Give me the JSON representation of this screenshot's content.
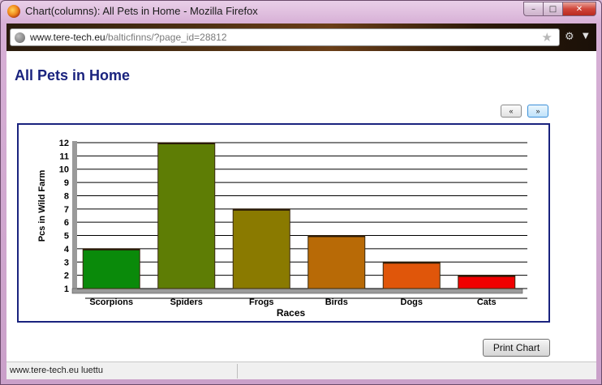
{
  "window": {
    "title": "Chart(columns): All Pets in Home - Mozilla Firefox",
    "minimize_glyph": "–",
    "maximize_glyph": "□",
    "close_glyph": "✕"
  },
  "toolbar": {
    "url_host": "www.tere-tech.eu",
    "url_path": "/balticfinns/?page_id=28812",
    "star_glyph": "★",
    "tool_glyph": "⚙",
    "dropdown_glyph": "▼"
  },
  "page": {
    "title": "All Pets in Home",
    "prev_label": "«",
    "next_label": "»",
    "print_label": "Print Chart"
  },
  "status": {
    "text": "www.tere-tech.eu luettu"
  },
  "chart_data": {
    "type": "bar",
    "title": "",
    "xlabel": "Races",
    "ylabel": "Pcs in Wild Farm",
    "categories": [
      "Scorpions",
      "Spiders",
      "Frogs",
      "Birds",
      "Dogs",
      "Cats"
    ],
    "values": [
      4,
      12,
      7,
      5,
      3,
      2
    ],
    "colors": [
      "#0a8a0a",
      "#5e7d05",
      "#8a7a00",
      "#b86a06",
      "#e0560a",
      "#f00000"
    ],
    "ylim": [
      1,
      12
    ],
    "yticks": [
      1,
      2,
      3,
      4,
      5,
      6,
      7,
      8,
      9,
      10,
      11,
      12
    ],
    "grid": true
  }
}
